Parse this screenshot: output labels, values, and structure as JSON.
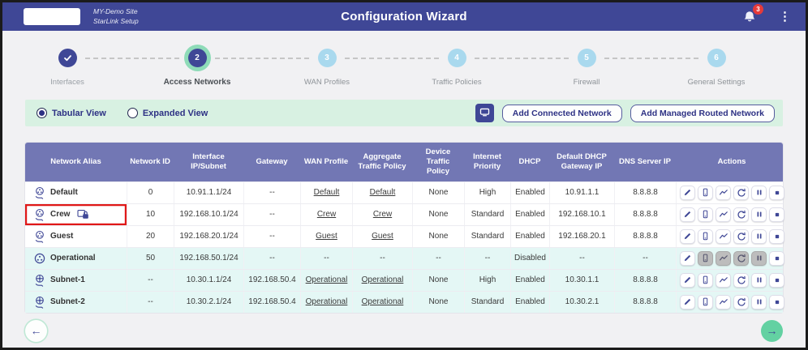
{
  "header": {
    "site_line1": "MY-Demo Site",
    "site_line2": "StarLink Setup",
    "title": "Configuration Wizard",
    "notification_count": "3"
  },
  "stepper": {
    "steps": [
      {
        "label": "Interfaces",
        "number": "1",
        "state": "completed"
      },
      {
        "label": "Access Networks",
        "number": "2",
        "state": "active"
      },
      {
        "label": "WAN Profiles",
        "number": "3",
        "state": "upcoming"
      },
      {
        "label": "Traffic Policies",
        "number": "4",
        "state": "upcoming"
      },
      {
        "label": "Firewall",
        "number": "5",
        "state": "upcoming"
      },
      {
        "label": "General Settings",
        "number": "6",
        "state": "upcoming"
      }
    ]
  },
  "toolbar": {
    "view_options": [
      {
        "label": "Tabular View",
        "selected": true
      },
      {
        "label": "Expanded View",
        "selected": false
      }
    ],
    "add_connected_label": "Add Connected Network",
    "add_managed_label": "Add Managed Routed Network"
  },
  "table": {
    "columns": [
      "Network Alias",
      "Network ID",
      "Interface IP/Subnet",
      "Gateway",
      "WAN Profile",
      "Aggregate Traffic Policy",
      "Device Traffic Policy",
      "Internet Priority",
      "DHCP",
      "Default DHCP Gateway IP",
      "DNS Server IP",
      "Actions"
    ],
    "action_icons": [
      "edit",
      "devices",
      "chart",
      "renew",
      "pause",
      "stop"
    ],
    "rows": [
      {
        "alias": "Default",
        "icon": "network-share-icon",
        "lock": false,
        "highlight": false,
        "tinted": false,
        "network_id": "0",
        "ip_subnet": "10.91.1.1/24",
        "gateway": "--",
        "wan_profile": "Default",
        "aggregate_policy": "Default",
        "device_policy": "None",
        "internet_priority": "High",
        "dhcp": "Enabled",
        "dhcp_gateway": "10.91.1.1",
        "dns": "8.8.8.8",
        "disabled_actions": []
      },
      {
        "alias": "Crew",
        "icon": "network-share-icon",
        "lock": true,
        "highlight": true,
        "tinted": false,
        "network_id": "10",
        "ip_subnet": "192.168.10.1/24",
        "gateway": "--",
        "wan_profile": "Crew",
        "aggregate_policy": "Crew",
        "device_policy": "None",
        "internet_priority": "Standard",
        "dhcp": "Enabled",
        "dhcp_gateway": "192.168.10.1",
        "dns": "8.8.8.8",
        "disabled_actions": []
      },
      {
        "alias": "Guest",
        "icon": "network-share-icon",
        "lock": false,
        "highlight": false,
        "tinted": false,
        "network_id": "20",
        "ip_subnet": "192.168.20.1/24",
        "gateway": "--",
        "wan_profile": "Guest",
        "aggregate_policy": "Guest",
        "device_policy": "None",
        "internet_priority": "Standard",
        "dhcp": "Enabled",
        "dhcp_gateway": "192.168.20.1",
        "dns": "8.8.8.8",
        "disabled_actions": []
      },
      {
        "alias": "Operational",
        "icon": "network-icon",
        "lock": false,
        "highlight": false,
        "tinted": true,
        "network_id": "50",
        "ip_subnet": "192.168.50.1/24",
        "gateway": "--",
        "wan_profile": "--",
        "aggregate_policy": "--",
        "device_policy": "--",
        "internet_priority": "--",
        "dhcp": "Disabled",
        "dhcp_gateway": "--",
        "dns": "--",
        "disabled_actions": [
          "devices",
          "chart",
          "renew",
          "pause"
        ]
      },
      {
        "alias": "Subnet-1",
        "icon": "subnet-share-icon",
        "lock": false,
        "highlight": false,
        "tinted": true,
        "network_id": "--",
        "ip_subnet": "10.30.1.1/24",
        "gateway": "192.168.50.4",
        "wan_profile": "Operational",
        "aggregate_policy": "Operational",
        "device_policy": "None",
        "internet_priority": "High",
        "dhcp": "Enabled",
        "dhcp_gateway": "10.30.1.1",
        "dns": "8.8.8.8",
        "disabled_actions": []
      },
      {
        "alias": "Subnet-2",
        "icon": "subnet-share-icon",
        "lock": false,
        "highlight": false,
        "tinted": true,
        "network_id": "--",
        "ip_subnet": "10.30.2.1/24",
        "gateway": "192.168.50.4",
        "wan_profile": "Operational",
        "aggregate_policy": "Operational",
        "device_policy": "None",
        "internet_priority": "Standard",
        "dhcp": "Enabled",
        "dhcp_gateway": "10.30.2.1",
        "dns": "8.8.8.8",
        "disabled_actions": []
      }
    ]
  },
  "colors": {
    "accent_indigo": "#3f4796",
    "table_header_purple": "#7277b4",
    "mint_bar": "#d8f1e2",
    "row_tint": "#e4f7f5",
    "step_upcoming_blue": "#a9d9ee",
    "active_ring_green": "#8edbb8",
    "next_button_green": "#63d1a2",
    "badge_red": "#e63a3a",
    "highlight_red": "#e01818"
  }
}
